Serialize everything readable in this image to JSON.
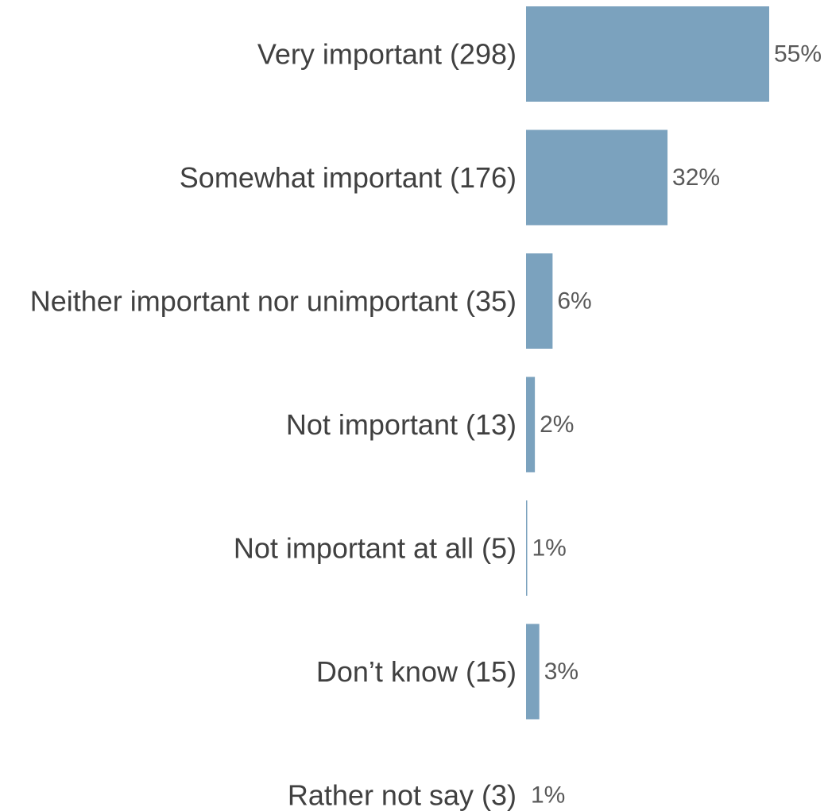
{
  "chart_data": {
    "type": "bar",
    "orientation": "horizontal",
    "categories": [
      "Very important (298)",
      "Somewhat important (176)",
      "Neither important nor unimportant (35)",
      "Not important (13)",
      "Not important at all (5)",
      "Don’t know (15)",
      "Rather not say (3)"
    ],
    "values": [
      55,
      32,
      6,
      2,
      1,
      3,
      1
    ],
    "value_labels": [
      "55%",
      "32%",
      "6%",
      "2%",
      "1%",
      "3%",
      "1%"
    ],
    "xlim": [
      0,
      55
    ],
    "grid": false,
    "legend": "none",
    "bar_color": "#7ba2be"
  }
}
